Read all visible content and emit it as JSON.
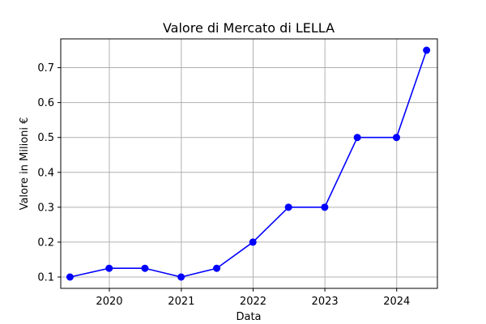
{
  "chart_data": {
    "type": "line",
    "title": "Valore di Mercato di LELLA",
    "xlabel": "Data",
    "ylabel": "Valore in Milioni €",
    "x_axis_type": "date",
    "x": [
      "2019-06-15",
      "2019-12-31",
      "2020-06-30",
      "2020-12-31",
      "2021-06-30",
      "2021-12-31",
      "2022-06-30",
      "2022-12-31",
      "2023-06-15",
      "2023-12-31",
      "2024-06-01"
    ],
    "series": [
      {
        "values": [
          0.1,
          0.125,
          0.125,
          0.1,
          0.125,
          0.2,
          0.3,
          0.3,
          0.5,
          0.5,
          0.75
        ]
      }
    ],
    "xticks": [
      "2020",
      "2021",
      "2022",
      "2023",
      "2024"
    ],
    "yticks": [
      "0.1",
      "0.2",
      "0.3",
      "0.4",
      "0.5",
      "0.6",
      "0.7"
    ],
    "xlim": [
      "2019-04-29",
      "2024-07-26"
    ],
    "ylim": [
      0.0675,
      0.7825
    ],
    "grid": true,
    "line_color": "#0000ff",
    "marker": "circle"
  }
}
